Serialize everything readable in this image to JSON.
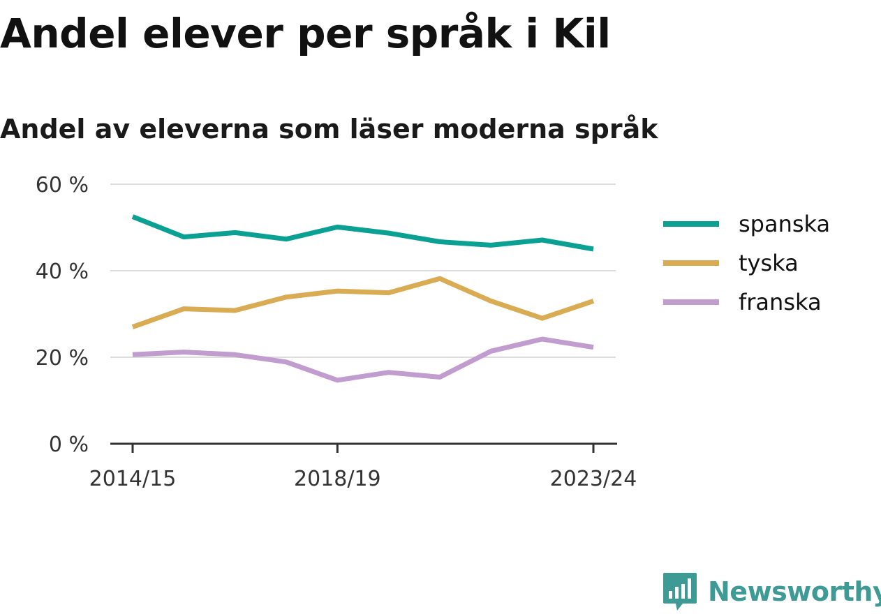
{
  "title": "Andel elever per språk i Kil",
  "subtitle": "Andel av eleverna som läser moderna språk",
  "brand": {
    "name": "Newsworthy",
    "color": "#3d9a94",
    "icon": "bar-chart-logo-icon"
  },
  "chart_data": {
    "type": "line",
    "x": [
      "2014/15",
      "2015/16",
      "2016/17",
      "2017/18",
      "2018/19",
      "2019/20",
      "2020/21",
      "2021/22",
      "2022/23",
      "2023/24"
    ],
    "x_tick_labels": [
      "2014/15",
      "2018/19",
      "2023/24"
    ],
    "y_ticks": [
      0,
      20,
      40,
      60
    ],
    "y_tick_labels": [
      "0 %",
      "20 %",
      "40 %",
      "60 %"
    ],
    "ylim": [
      0,
      60
    ],
    "grid": true,
    "legend_position": "right",
    "series": [
      {
        "name": "spanska",
        "color": "#0aa194",
        "values": [
          52.5,
          47.8,
          48.8,
          47.3,
          50.1,
          48.7,
          46.7,
          45.9,
          47.1,
          45.0
        ]
      },
      {
        "name": "tyska",
        "color": "#d9ab52",
        "values": [
          27.0,
          31.2,
          30.8,
          33.9,
          35.3,
          34.9,
          38.2,
          33.0,
          29.0,
          33.0
        ]
      },
      {
        "name": "franska",
        "color": "#c19cce",
        "values": [
          20.6,
          21.2,
          20.6,
          18.9,
          14.7,
          16.5,
          15.4,
          21.4,
          24.2,
          22.3
        ]
      }
    ]
  }
}
